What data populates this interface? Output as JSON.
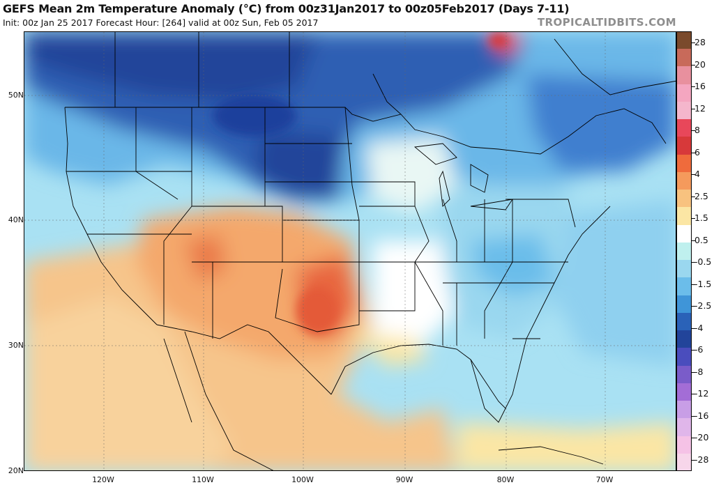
{
  "header": {
    "title": "GEFS Mean 2m Temperature Anomaly (°C) from 00z31Jan2017 to 00z05Feb2017 (Days 7-11)",
    "subtitle": "Init: 00z Jan 25 2017   Forecast Hour: [264]   valid at 00z Sun, Feb 05 2017",
    "credit": "TROPICALTIDBITS.COM"
  },
  "axes": {
    "lat_labels": [
      "50N",
      "40N",
      "30N",
      "20N"
    ],
    "lon_labels": [
      "120W",
      "110W",
      "100W",
      "90W",
      "80W",
      "70W"
    ]
  },
  "colorbar": {
    "labels": [
      "28",
      "20",
      "16",
      "12",
      "8",
      "6",
      "4",
      "2.5",
      "1.5",
      "0.5",
      "-0.5",
      "-1.5",
      "-2.5",
      "-4",
      "-6",
      "-8",
      "-12",
      "-16",
      "-20",
      "-28"
    ],
    "colors": [
      "#7a4a2c",
      "#c86a5a",
      "#e8909e",
      "#f4a6c0",
      "#f4b6cc",
      "#e8475a",
      "#d7393a",
      "#ef6b3c",
      "#f59a5c",
      "#f8c27f",
      "#fbe6a4",
      "#ffffff",
      "#bff0ee",
      "#9ad7ef",
      "#6bbdea",
      "#3f95d8",
      "#2a62b8",
      "#22449a",
      "#4a4dbd",
      "#7a5cc9",
      "#a36dd6",
      "#c89ee6",
      "#e0b6ea",
      "#f5c2e6",
      "#f7d6ea"
    ]
  },
  "legend_colors": {
    "strong_cold": "#1f3f9c",
    "cold": "#3d86d4",
    "cool": "#8fd0ef",
    "near_zero": "#ffffff",
    "warm": "#f6b77b",
    "hot": "#e8663f"
  }
}
